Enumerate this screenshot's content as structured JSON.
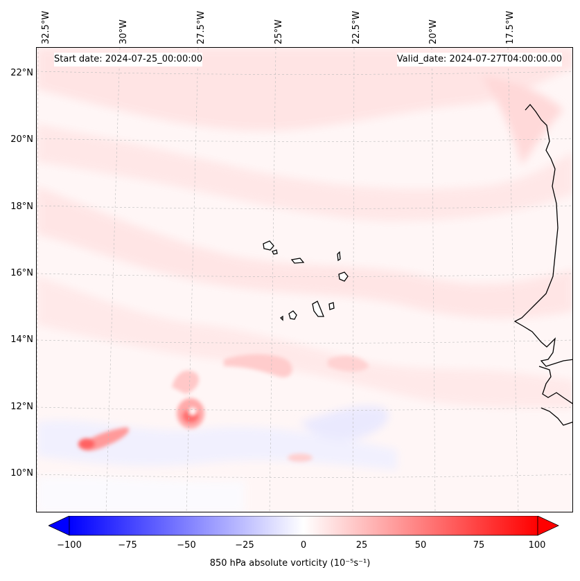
{
  "header": {
    "start_date": "Start date: 2024-07-25_00:00:00",
    "valid_date": "Valid_date: 2024-07-27T04:00:00.00"
  },
  "longitude_labels": [
    "32.5°W",
    "30°W",
    "27.5°W",
    "25°W",
    "22.5°W",
    "20°W",
    "17.5°W"
  ],
  "latitude_labels": [
    "22°N",
    "20°N",
    "18°N",
    "16°N",
    "14°N",
    "12°N",
    "10°N"
  ],
  "colorbar": {
    "label": "850 hPa absolute vorticity (10⁻⁵s⁻¹)",
    "ticks": [
      "−100",
      "−75",
      "−50",
      "−25",
      "0",
      "25",
      "50",
      "75",
      "100"
    ],
    "range": [
      -100,
      100
    ],
    "low_color": "#0000ff",
    "mid_color": "#ffffff",
    "high_color": "#ff0000"
  }
}
